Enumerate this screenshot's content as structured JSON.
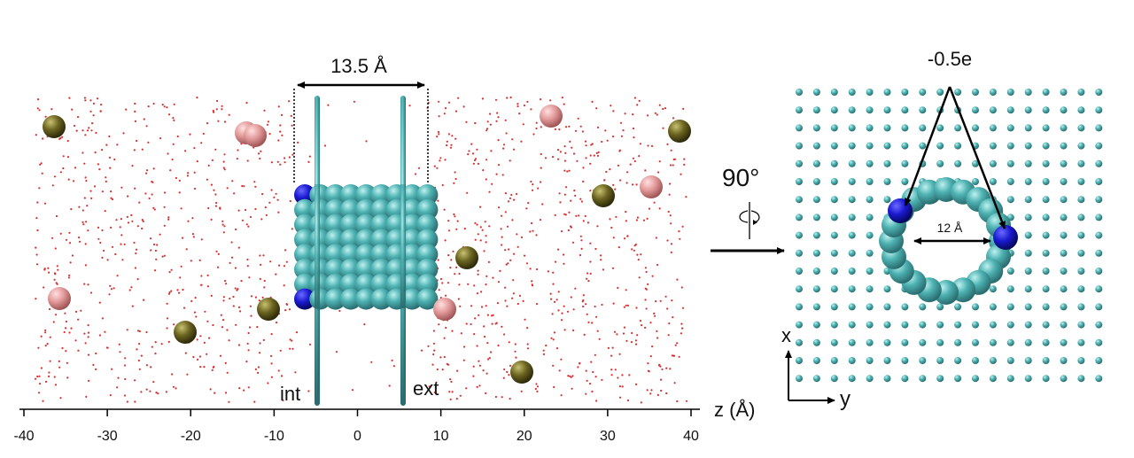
{
  "left_panel": {
    "width_label": "13.5 Å",
    "int_label": "int",
    "ext_label": "ext",
    "axis": {
      "label": "z (Å)",
      "ticks": [
        "-40",
        "-30",
        "-20",
        "-10",
        "0",
        "10",
        "20",
        "30",
        "40"
      ],
      "range": [
        -40,
        40
      ]
    }
  },
  "rotation": {
    "angle_label": "90°"
  },
  "right_panel": {
    "charge_label": "-0.5e",
    "diameter_label": "12 Å",
    "axis_x_label": "x",
    "axis_y_label": "y"
  },
  "colors": {
    "carbon": "#4fb3b3",
    "charged": "#1a1ad0",
    "water": "#d83030",
    "cation": "#6b6420",
    "anion": "#e39a9a"
  }
}
